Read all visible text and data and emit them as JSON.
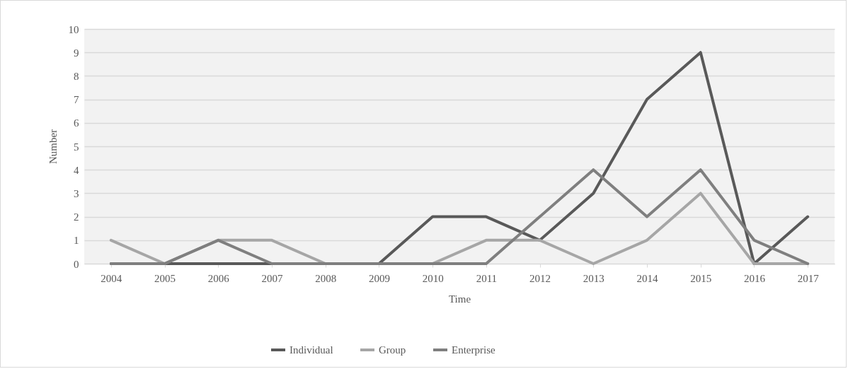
{
  "chart_data": {
    "type": "line",
    "xlabel": "Time",
    "ylabel": "Number",
    "categories": [
      "2004",
      "2005",
      "2006",
      "2007",
      "2008",
      "2009",
      "2010",
      "2011",
      "2012",
      "2013",
      "2014",
      "2015",
      "2016",
      "2017"
    ],
    "series": [
      {
        "name": "Individual",
        "color": "#595959",
        "values": [
          0,
          0,
          0,
          0,
          0,
          0,
          2,
          2,
          1,
          3,
          7,
          9,
          0,
          2
        ]
      },
      {
        "name": "Group",
        "color": "#a6a6a6",
        "values": [
          1,
          0,
          1,
          1,
          0,
          0,
          0,
          1,
          1,
          0,
          1,
          3,
          0,
          0
        ]
      },
      {
        "name": "Enterprise",
        "color": "#7f7f7f",
        "values": [
          0,
          0,
          1,
          0,
          0,
          0,
          0,
          0,
          2,
          4,
          2,
          4,
          1,
          0
        ]
      }
    ],
    "ylim": [
      0,
      10
    ],
    "yticks": [
      0,
      1,
      2,
      3,
      4,
      5,
      6,
      7,
      8,
      9,
      10
    ],
    "grid": "y",
    "legend": "bottom",
    "marker": "none",
    "line_style": "solid"
  }
}
